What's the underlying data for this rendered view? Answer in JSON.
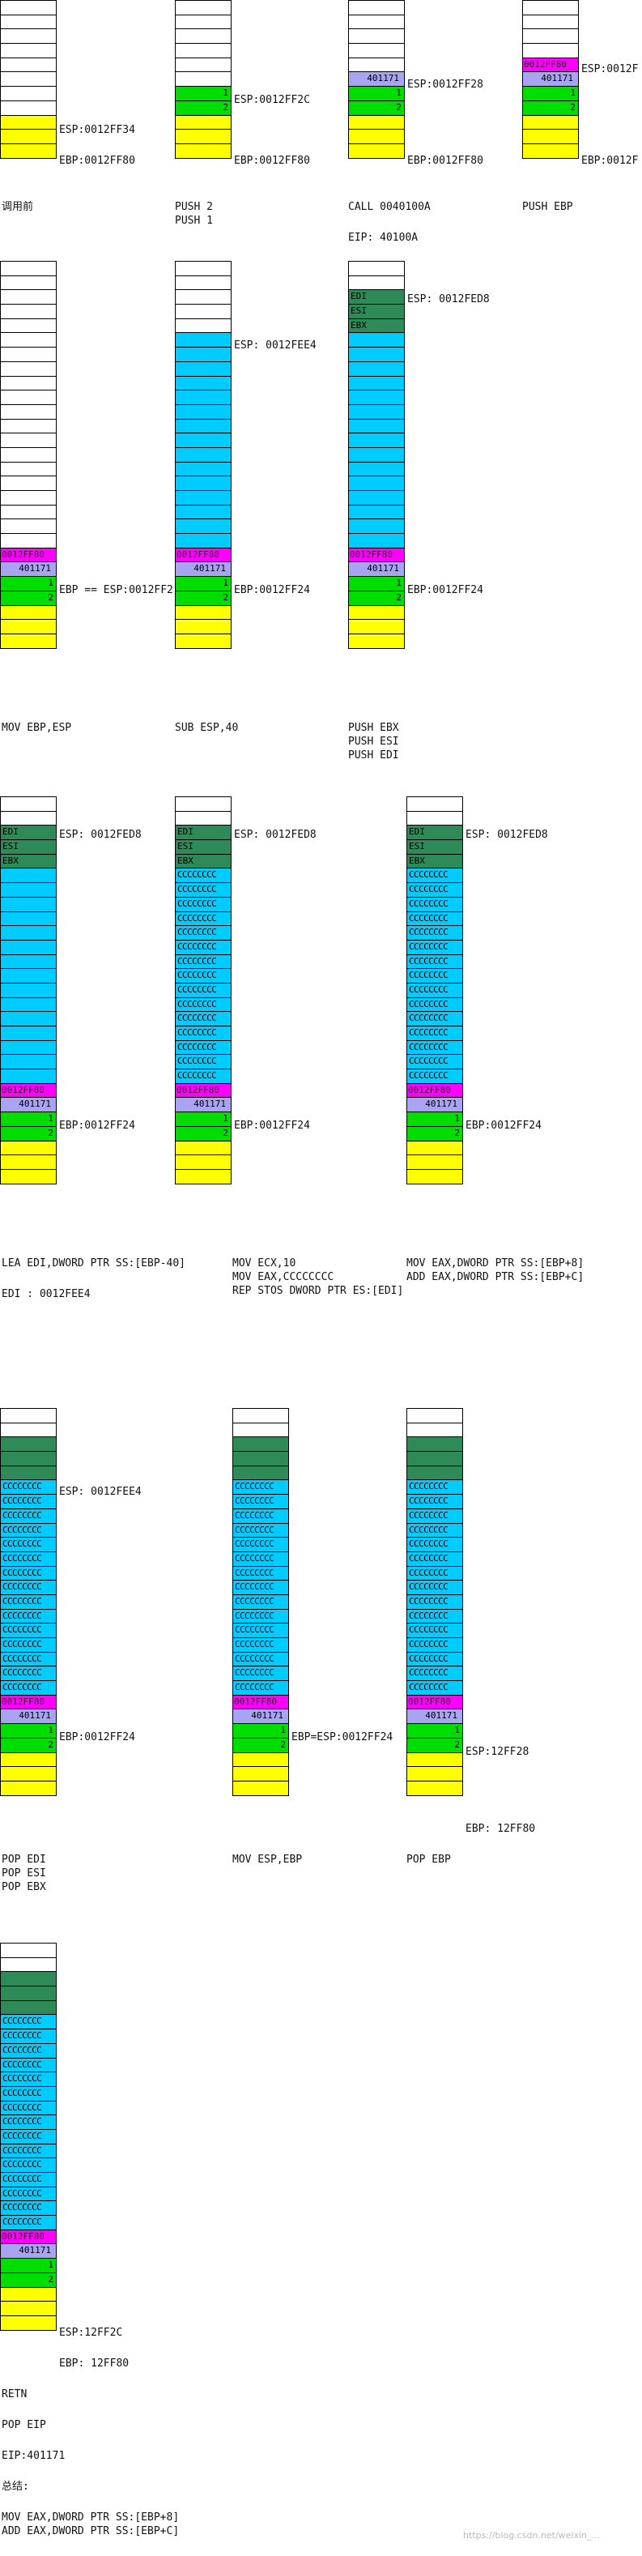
{
  "cell_values": {
    "ret_addr": "401171",
    "arg1": "1",
    "arg2": "2",
    "ebp_value": "0012FF80",
    "edi": "EDI",
    "esi": "ESI",
    "ebx": "EBX",
    "fill": "CCCCCCCC"
  },
  "stacks": [
    {
      "id": "before-call",
      "cells": [
        "e",
        "e",
        "e",
        "e",
        "e",
        "e",
        "e",
        "e",
        "y",
        "y",
        "y"
      ]
    },
    {
      "id": "push-args",
      "cells": [
        "e",
        "e",
        "e",
        "e",
        "e",
        "e",
        "g1",
        "g2",
        "y",
        "y",
        "y"
      ]
    },
    {
      "id": "call",
      "cells": [
        "e",
        "e",
        "e",
        "e",
        "e",
        "p",
        "g1",
        "g2",
        "y",
        "y",
        "y"
      ]
    },
    {
      "id": "push-ebp",
      "cells": [
        "e",
        "e",
        "e",
        "e",
        "m",
        "p",
        "g1",
        "g2",
        "y",
        "y",
        "y"
      ]
    },
    {
      "id": "mov-ebp-esp",
      "cells": [
        "e",
        "e",
        "e",
        "e",
        "e",
        "e",
        "e",
        "e",
        "e",
        "e",
        "e",
        "e",
        "e",
        "e",
        "e",
        "e",
        "e",
        "e",
        "e",
        "e",
        "m",
        "p",
        "g1",
        "g2",
        "y",
        "y",
        "y"
      ]
    },
    {
      "id": "sub-esp",
      "cells": [
        "e",
        "e",
        "e",
        "e",
        "e",
        "c",
        "c",
        "c",
        "c",
        "c",
        "c",
        "c",
        "c",
        "c",
        "c",
        "c",
        "c",
        "c",
        "c",
        "c",
        "m",
        "p",
        "g1",
        "g2",
        "y",
        "y",
        "y"
      ]
    },
    {
      "id": "push-regs",
      "cells": [
        "e",
        "e",
        "dEDI",
        "dESI",
        "dEBX",
        "c",
        "c",
        "c",
        "c",
        "c",
        "c",
        "c",
        "c",
        "c",
        "c",
        "c",
        "c",
        "c",
        "c",
        "c",
        "m",
        "p",
        "g1",
        "g2",
        "y",
        "y",
        "y"
      ]
    },
    {
      "id": "lea-edi",
      "cells": [
        "e",
        "e",
        "dEDI",
        "dESI",
        "dEBX",
        "c",
        "c",
        "c",
        "c",
        "c",
        "c",
        "c",
        "c",
        "c",
        "c",
        "c",
        "c",
        "c",
        "c",
        "c",
        "m",
        "p",
        "g1",
        "g2",
        "y",
        "y",
        "y"
      ]
    },
    {
      "id": "rep-stos",
      "cells": [
        "e",
        "e",
        "dEDI",
        "dESI",
        "dEBX",
        "x",
        "x",
        "x",
        "x",
        "x",
        "x",
        "x",
        "x",
        "x",
        "x",
        "x",
        "x",
        "x",
        "x",
        "x",
        "m",
        "p",
        "g1",
        "g2",
        "y",
        "y",
        "y"
      ]
    },
    {
      "id": "mov-eax",
      "cells": [
        "e",
        "e",
        "dEDI",
        "dESI",
        "dEBX",
        "x",
        "x",
        "x",
        "x",
        "x",
        "x",
        "x",
        "x",
        "x",
        "x",
        "x",
        "x",
        "x",
        "x",
        "x",
        "m",
        "p",
        "g1",
        "g2",
        "y",
        "y",
        "y"
      ]
    },
    {
      "id": "pop-regs",
      "cells": [
        "e",
        "e",
        "d",
        "d",
        "d",
        "x",
        "x",
        "x",
        "x",
        "x",
        "x",
        "x",
        "x",
        "x",
        "x",
        "x",
        "x",
        "x",
        "x",
        "x",
        "m",
        "p",
        "g1",
        "g2",
        "y",
        "y",
        "y"
      ]
    },
    {
      "id": "mov-esp-ebp",
      "cells": [
        "e",
        "e",
        "d",
        "d",
        "d",
        "x",
        "x",
        "x",
        "x",
        "x",
        "x",
        "x",
        "x",
        "x",
        "x",
        "x",
        "x",
        "x",
        "x",
        "x",
        "m",
        "p",
        "g1",
        "g2",
        "y",
        "y",
        "y"
      ]
    },
    {
      "id": "pop-ebp",
      "cells": [
        "e",
        "e",
        "d",
        "d",
        "d",
        "x",
        "x",
        "x",
        "x",
        "x",
        "x",
        "x",
        "x",
        "x",
        "x",
        "x",
        "x",
        "x",
        "x",
        "x",
        "m",
        "p",
        "g1",
        "g2",
        "y",
        "y",
        "y"
      ]
    },
    {
      "id": "retn",
      "cells": [
        "e",
        "e",
        "d",
        "d",
        "d",
        "x",
        "x",
        "x",
        "x",
        "x",
        "x",
        "x",
        "x",
        "x",
        "x",
        "x",
        "x",
        "x",
        "x",
        "x",
        "m",
        "p",
        "g1",
        "g2",
        "y",
        "y",
        "y"
      ]
    }
  ],
  "labels": {
    "s1_esp": "ESP:0012FF34",
    "s1_ebp": "EBP:0012FF80",
    "s2_esp": "ESP:0012FF2C",
    "s2_ebp": "EBP:0012FF80",
    "s3_esp": "ESP:0012FF28",
    "s3_ebp": "EBP:0012FF80",
    "s4_esp": "ESP:0012F",
    "s4_ebp": "EBP:0012F",
    "s5_ebp": "EBP == ESP:0012FF2",
    "s6_esp": "ESP: 0012FEE4",
    "s6_ebp": "EBP:0012FF24",
    "s7_esp": "ESP: 0012FED8",
    "s7_ebp": "EBP:0012FF24",
    "s8_esp": "ESP: 0012FED8",
    "s8_ebp": "EBP:0012FF24",
    "s9_esp": "ESP: 0012FED8",
    "s9_ebp": "EBP:0012FF24",
    "s10_esp": "ESP: 0012FED8",
    "s10_ebp": "EBP:0012FF24",
    "s11_esp": "ESP: 0012FEE4",
    "s11_ebp": "EBP:0012FF24",
    "s12_ebp": "EBP=ESP:0012FF24",
    "s13_esp": "ESP:12FF28",
    "s13_ebp": "EBP: 12FF80",
    "s14_esp": "ESP:12FF2C",
    "s14_ebp": "EBP: 12FF80"
  },
  "captions": {
    "c1": "调用前",
    "c2": "PUSH 2\nPUSH 1",
    "c3": "CALL 0040100A",
    "c3b": "EIP: 40100A",
    "c4": "PUSH EBP",
    "c5": "MOV EBP,ESP",
    "c6": "SUB ESP,40",
    "c7": "PUSH EBX\nPUSH ESI\nPUSH EDI",
    "c8": "LEA EDI,DWORD PTR SS:[EBP-40]",
    "c8b": "EDI : 0012FEE4",
    "c9": "MOV ECX,10\nMOV EAX,CCCCCCCC\nREP STOS DWORD PTR ES:[EDI]",
    "c10": "MOV EAX,DWORD PTR SS:[EBP+8]\nADD EAX,DWORD PTR SS:[EBP+C]",
    "c11": "POP EDI\nPOP ESI\nPOP EBX",
    "c12": "MOV ESP,EBP",
    "c13": "POP EBP",
    "c14a": "RETN",
    "c14b": "POP EIP",
    "c14c": "EIP:401171",
    "c14d": "总结:",
    "c14e": "MOV EAX,DWORD PTR SS:[EBP+8]\nADD EAX,DWORD PTR SS:[EBP+C]"
  },
  "watermark": "https://blog.csdn.net/weixin_..."
}
